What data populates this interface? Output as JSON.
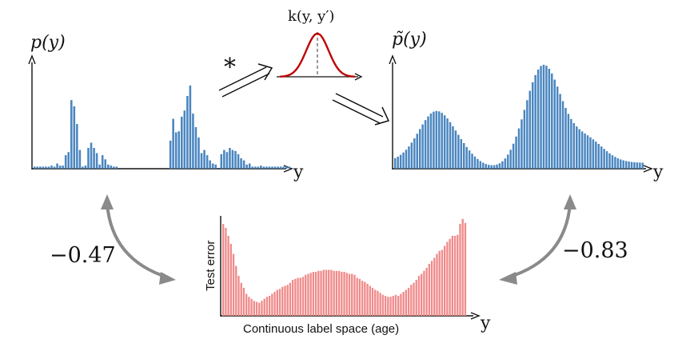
{
  "labels": {
    "p_y": "p(y)",
    "p_tilde_y": "p̃(y)",
    "kernel": "k(y, y′)",
    "convolve": "*",
    "y_axis_top_left": "y",
    "y_axis_top_right": "y",
    "y_axis_bottom": "y",
    "corr_left": "−0.47",
    "corr_right": "−0.83",
    "test_error_ylabel": "Test error",
    "bottom_xlabel": "Continuous label space (age)"
  },
  "colors": {
    "blue_bars": "#4a86c0",
    "red_bars": "#f08a8a",
    "kernel_curve": "#c00000",
    "arrow_gray": "#8a8a8a"
  },
  "chart_data": [
    {
      "id": "empirical",
      "type": "bar",
      "title": "p(y)",
      "xlabel": "y",
      "ylabel": "",
      "ylim": [
        0,
        1
      ],
      "values": [
        0.02,
        0.02,
        0.02,
        0.02,
        0.02,
        0.02,
        0.03,
        0.02,
        0.05,
        0.03,
        0.03,
        0.13,
        0.16,
        0.66,
        0.6,
        0.43,
        0.18,
        0.02,
        0.03,
        0.2,
        0.25,
        0.2,
        0.15,
        0.04,
        0.13,
        0.09,
        0.04,
        0.03,
        0.02,
        0.02,
        0,
        0,
        0,
        0,
        0,
        0,
        0,
        0,
        0,
        0,
        0,
        0,
        0,
        0,
        0,
        0,
        0,
        0,
        0.27,
        0.48,
        0.35,
        0.36,
        0.5,
        0.56,
        0.7,
        0.8,
        0.53,
        0.4,
        0.3,
        0.15,
        0.18,
        0.13,
        0.08,
        0.05,
        0.04,
        0,
        0.14,
        0.18,
        0.16,
        0.2,
        0.18,
        0.17,
        0.14,
        0.1,
        0.08,
        0.04,
        0.05,
        0.02,
        0.02,
        0.02,
        0.03,
        0.02,
        0.02,
        0.02,
        0.02,
        0.02,
        0.02,
        0.02,
        0.02,
        0.02,
        0.02
      ]
    },
    {
      "id": "smoothed",
      "type": "bar",
      "title": "p̃(y)",
      "xlabel": "y",
      "ylabel": "",
      "ylim": [
        0,
        1
      ]
    },
    {
      "id": "test_error",
      "type": "bar",
      "title": "",
      "xlabel": "Continuous label space (age)",
      "ylabel": "Test error",
      "ylim": [
        0,
        1
      ],
      "values": [
        0.92,
        0.88,
        0.8,
        0.72,
        0.62,
        0.5,
        0.4,
        0.33,
        0.28,
        0.22,
        0.19,
        0.17,
        0.15,
        0.14,
        0.13,
        0.15,
        0.17,
        0.19,
        0.2,
        0.22,
        0.24,
        0.26,
        0.27,
        0.29,
        0.3,
        0.31,
        0.33,
        0.36,
        0.37,
        0.38,
        0.38,
        0.39,
        0.41,
        0.42,
        0.43,
        0.44,
        0.44,
        0.45,
        0.45,
        0.46,
        0.46,
        0.46,
        0.46,
        0.45,
        0.45,
        0.45,
        0.44,
        0.44,
        0.43,
        0.42,
        0.42,
        0.41,
        0.38,
        0.37,
        0.35,
        0.34,
        0.32,
        0.3,
        0.28,
        0.26,
        0.25,
        0.23,
        0.21,
        0.2,
        0.19,
        0.19,
        0.2,
        0.21,
        0.2,
        0.22,
        0.24,
        0.26,
        0.28,
        0.31,
        0.33,
        0.36,
        0.4,
        0.42,
        0.45,
        0.48,
        0.52,
        0.55,
        0.58,
        0.62,
        0.65,
        0.66,
        0.7,
        0.74,
        0.77,
        0.8,
        0.8,
        0.81,
        0.92,
        0.97,
        0.93
      ]
    }
  ]
}
